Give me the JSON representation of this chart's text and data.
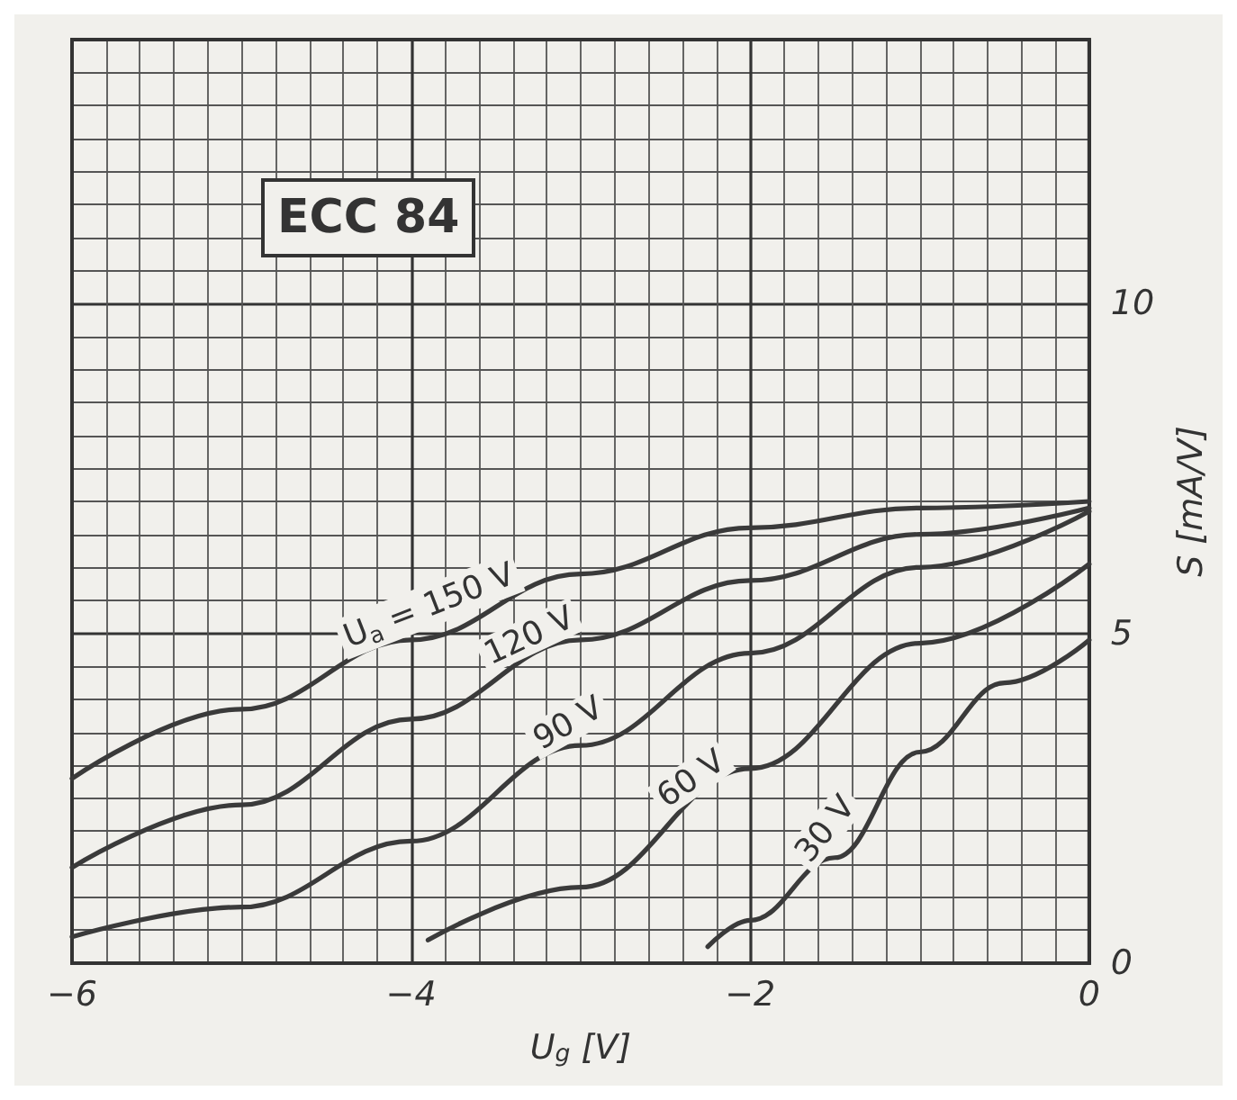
{
  "chart_data": {
    "type": "line",
    "title": "ECC 84",
    "xlabel": "U$_{g}$ [V]",
    "ylabel": "S [mA/V]",
    "xlim": [
      -6,
      0
    ],
    "xticks": [
      -6,
      -4,
      -2,
      0
    ],
    "ylim": [
      0,
      14
    ],
    "yticks": [
      0,
      5,
      10
    ],
    "grid": true,
    "legend": false,
    "marker": "none",
    "line_style": "solid",
    "series": [
      {
        "name": "U$_{a}$ = 150 V",
        "color": "#3a3a3a",
        "x": [
          -6,
          -5,
          -4,
          -3,
          -2,
          -1,
          0
        ],
        "values": [
          2.8,
          3.85,
          4.9,
          5.9,
          6.6,
          6.9,
          7.0
        ]
      },
      {
        "name": "120 V",
        "color": "#3a3a3a",
        "x": [
          -6,
          -5,
          -4,
          -3,
          -2,
          -1,
          0
        ],
        "values": [
          1.45,
          2.4,
          3.7,
          4.9,
          5.8,
          6.5,
          6.9
        ]
      },
      {
        "name": "90 V",
        "color": "#3a3a3a",
        "x": [
          -6,
          -5,
          -4,
          -3,
          -2,
          -1,
          0
        ],
        "values": [
          0.4,
          0.85,
          1.85,
          3.3,
          4.7,
          6.0,
          6.85
        ]
      },
      {
        "name": "60 V",
        "color": "#3a3a3a",
        "x": [
          -3.9,
          -3,
          -2,
          -1,
          0
        ],
        "values": [
          0.35,
          1.15,
          2.95,
          4.85,
          6.05
        ]
      },
      {
        "name": "30 V",
        "color": "#3a3a3a",
        "x": [
          -2.25,
          -2,
          -1.5,
          -1,
          -0.5,
          0
        ],
        "values": [
          0.25,
          0.65,
          1.6,
          3.2,
          4.25,
          4.9
        ]
      }
    ]
  }
}
